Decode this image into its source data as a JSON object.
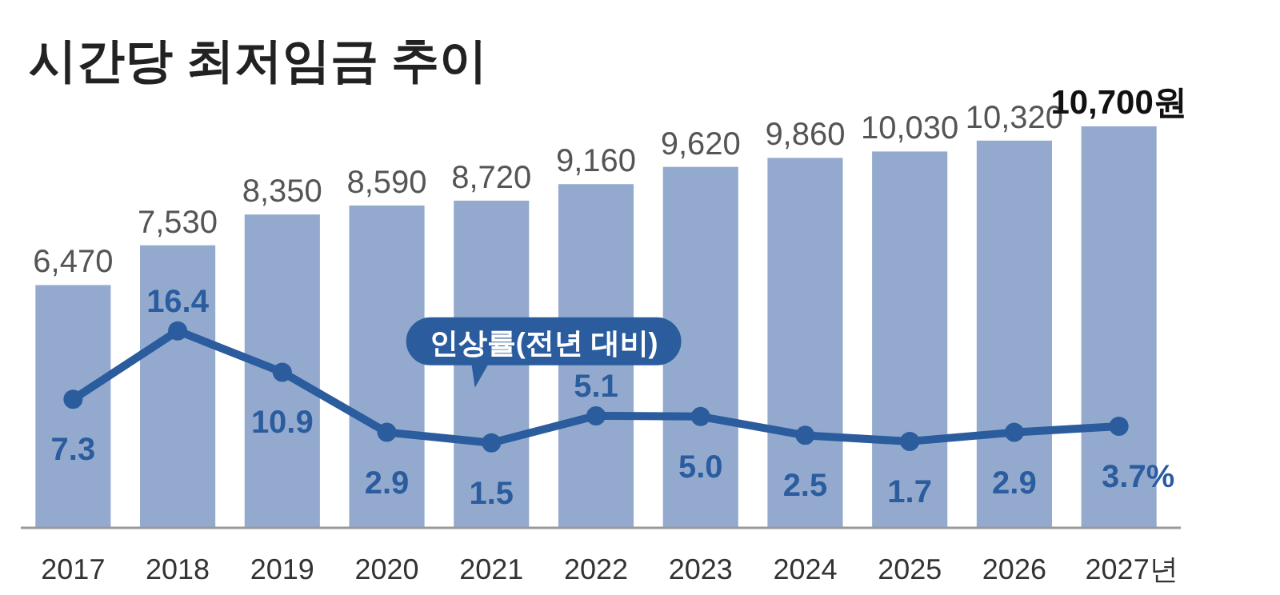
{
  "chart_data": {
    "type": "bar",
    "title": "시간당 최저임금 추이",
    "categories": [
      "2017",
      "2018",
      "2019",
      "2020",
      "2021",
      "2022",
      "2023",
      "2024",
      "2025",
      "2026",
      "2027년"
    ],
    "series": [
      {
        "color": "#93aace",
        "values": [
          6470,
          7530,
          8350,
          8590,
          8720,
          9160,
          9620,
          9860,
          10030,
          10320,
          10700
        ],
        "value_labels": [
          "6,470",
          "7,530",
          "8,350",
          "8,590",
          "8,720",
          "9,160",
          "9,620",
          "9,860",
          "10,030",
          "10,320",
          "10,700원"
        ]
      },
      {
        "type": "line",
        "axis": "y2",
        "name": "인상률(전년 대비)",
        "color": "#2b5c9e",
        "marker": "circle",
        "values": [
          7.3,
          16.4,
          10.9,
          2.9,
          1.5,
          5.1,
          5.0,
          2.5,
          1.7,
          2.9,
          3.7
        ],
        "value_labels": [
          "7.3",
          "16.4",
          "10.9",
          "2.9",
          "1.5",
          "5.1",
          "5.0",
          "2.5",
          "1.7",
          "2.9",
          "3.7%"
        ]
      }
    ],
    "ylim": [
      0,
      10700
    ],
    "y2lim": [
      -9.8,
      43.6
    ],
    "tick_labels": "x"
  }
}
